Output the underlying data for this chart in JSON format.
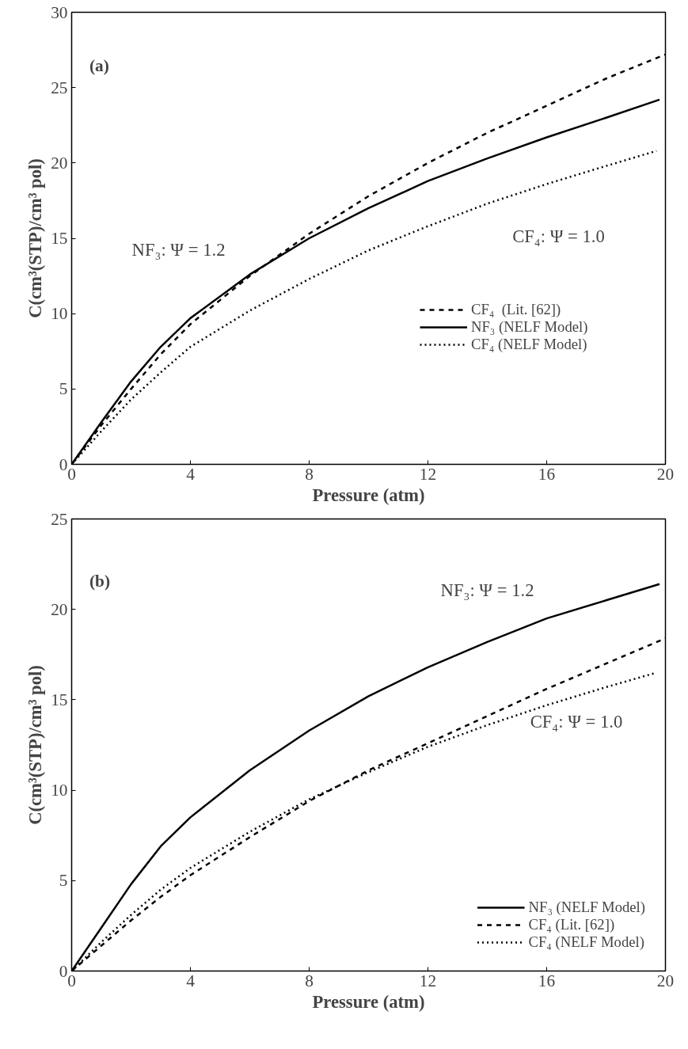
{
  "chart_data": [
    {
      "type": "line",
      "xlabel": "Pressure (atm)",
      "ylabel": "C(cm³(STP)/cm³ pol)",
      "xlim": [
        0,
        20
      ],
      "ylim": [
        0,
        30
      ],
      "xticks": [
        0,
        4,
        8,
        12,
        16,
        20
      ],
      "yticks": [
        0,
        5,
        10,
        15,
        20,
        25,
        30
      ],
      "grid": false,
      "legend": "right",
      "marker": "none",
      "annotations": [
        "(a)",
        "NF₃: Ψ = 1.2",
        "CF₄: Ψ = 1.0"
      ],
      "series": [
        {
          "name": "CF₄  (Lit. [62])",
          "color": "#000000",
          "line_style": "dashed",
          "x": [
            0,
            1,
            2,
            3,
            4,
            6,
            8,
            10,
            12,
            14,
            16,
            18,
            20
          ],
          "values": [
            0,
            2.6,
            5.0,
            7.3,
            9.3,
            12.5,
            15.3,
            17.8,
            20.0,
            22.0,
            23.8,
            25.6,
            27.2
          ]
        },
        {
          "name": "NF₃ (NELF Model)",
          "color": "#000000",
          "line_style": "solid",
          "x": [
            0,
            1,
            2,
            3,
            4,
            6,
            8,
            10,
            12,
            14,
            16,
            18,
            19.8
          ],
          "values": [
            0,
            2.8,
            5.5,
            7.8,
            9.7,
            12.6,
            15.0,
            17.0,
            18.8,
            20.3,
            21.7,
            23.0,
            24.2
          ]
        },
        {
          "name": "CF₄ (NELF Model)",
          "color": "#000000",
          "line_style": "dotted",
          "x": [
            0,
            1,
            2,
            3,
            4,
            6,
            8,
            10,
            12,
            14,
            16,
            18,
            19.7
          ],
          "values": [
            0,
            2.2,
            4.3,
            6.1,
            7.8,
            10.2,
            12.3,
            14.2,
            15.8,
            17.3,
            18.6,
            19.8,
            20.8
          ]
        }
      ]
    },
    {
      "type": "line",
      "xlabel": "Pressure (atm)",
      "ylabel": "C(cm³(STP)/cm³ pol)",
      "xlim": [
        0,
        20
      ],
      "ylim": [
        0,
        25
      ],
      "xticks": [
        0,
        4,
        8,
        12,
        16,
        20
      ],
      "yticks": [
        0,
        5,
        10,
        15,
        20,
        25
      ],
      "grid": false,
      "legend": "bottom right",
      "marker": "none",
      "annotations": [
        "(b)",
        "NF₃: Ψ = 1.2",
        "CF₄: Ψ = 1.0"
      ],
      "series": [
        {
          "name": "NF₃ (NELF Model)",
          "color": "#000000",
          "line_style": "solid",
          "x": [
            0,
            1,
            2,
            3,
            4,
            6,
            8,
            10,
            12,
            14,
            16,
            18,
            19.8
          ],
          "values": [
            0,
            2.4,
            4.8,
            6.9,
            8.5,
            11.1,
            13.3,
            15.2,
            16.8,
            18.2,
            19.5,
            20.5,
            21.4
          ]
        },
        {
          "name": "CF₄ (Lit. [62])",
          "color": "#000000",
          "line_style": "dashed",
          "x": [
            0,
            1,
            2,
            3,
            4,
            6,
            8,
            10,
            12,
            14,
            16,
            18,
            20
          ],
          "values": [
            0,
            1.4,
            2.8,
            4.1,
            5.3,
            7.4,
            9.4,
            11.1,
            12.6,
            14.1,
            15.6,
            17.0,
            18.4
          ]
        },
        {
          "name": "CF₄ (NELF Model)",
          "color": "#000000",
          "line_style": "dotted",
          "x": [
            0,
            1,
            2,
            3,
            4,
            6,
            8,
            10,
            12,
            14,
            16,
            18,
            19.7
          ],
          "values": [
            0,
            1.6,
            3.1,
            4.5,
            5.7,
            7.7,
            9.5,
            11.0,
            12.4,
            13.6,
            14.7,
            15.7,
            16.5
          ]
        }
      ]
    }
  ]
}
